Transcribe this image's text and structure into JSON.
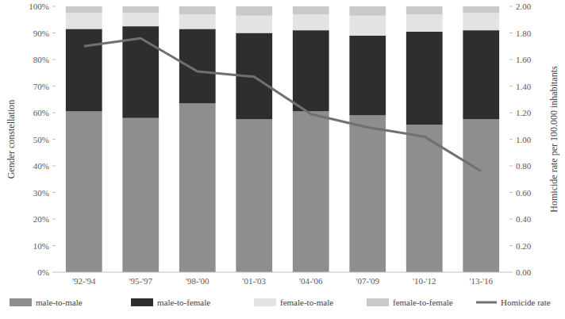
{
  "chart_data": {
    "type": "bar",
    "stacked": true,
    "legend": "bottom",
    "grid": false,
    "categories": [
      "'92-'94",
      "'95-'97",
      "'98-'00",
      "'01-'03",
      "'04-'06",
      "'07-'09",
      "'10-'12",
      "'13-'16"
    ],
    "y_label": "Gender constellation",
    "y2_label": "Homicide rate per 100.000 inhabitants",
    "ylim": [
      0,
      100
    ],
    "yticks": [
      {
        "value": 0,
        "label": "0%"
      },
      {
        "value": 10,
        "label": "10%"
      },
      {
        "value": 20,
        "label": "20%"
      },
      {
        "value": 30,
        "label": "30%"
      },
      {
        "value": 40,
        "label": "40%"
      },
      {
        "value": 50,
        "label": "50%"
      },
      {
        "value": 60,
        "label": "60%"
      },
      {
        "value": 70,
        "label": "70%"
      },
      {
        "value": 80,
        "label": "80%"
      },
      {
        "value": 90,
        "label": "90%"
      },
      {
        "value": 100,
        "label": "100%"
      }
    ],
    "y2lim": [
      0,
      2
    ],
    "y2ticks": [
      {
        "value": 0,
        "label": "0.00"
      },
      {
        "value": 0.2,
        "label": "0.20"
      },
      {
        "value": 0.4,
        "label": "0.40"
      },
      {
        "value": 0.6,
        "label": "0.60"
      },
      {
        "value": 0.8,
        "label": "0.80"
      },
      {
        "value": 1,
        "label": "1.00"
      },
      {
        "value": 1.2,
        "label": "1.20"
      },
      {
        "value": 1.4,
        "label": "1.40"
      },
      {
        "value": 1.6,
        "label": "1.60"
      },
      {
        "value": 1.8,
        "label": "1.80"
      },
      {
        "value": 2,
        "label": "2.00"
      }
    ],
    "series": [
      {
        "name": "male-to-male",
        "type": "bar",
        "color": "#8e8e8e",
        "values": [
          60.5,
          58,
          63.5,
          57.5,
          60.5,
          59,
          55.5,
          57.5
        ]
      },
      {
        "name": "male-to-female",
        "type": "bar",
        "color": "#2e2e2e",
        "values": [
          31,
          34.5,
          28,
          32.5,
          30.5,
          30,
          35,
          33.5
        ]
      },
      {
        "name": "female-to-male",
        "type": "bar",
        "color": "#e3e3e3",
        "values": [
          6,
          5,
          5.5,
          6.5,
          6,
          7.5,
          6.5,
          6.5
        ]
      },
      {
        "name": "female-to-female",
        "type": "bar",
        "color": "#c9c9c9",
        "values": [
          2.5,
          2.5,
          3,
          3.5,
          3,
          3.5,
          3,
          2.5
        ]
      },
      {
        "name": "Homicide rate",
        "type": "line",
        "axis": "y2",
        "color": "#707070",
        "values": [
          1.7,
          1.76,
          1.51,
          1.47,
          1.19,
          1.09,
          1.02,
          0.76
        ]
      }
    ]
  }
}
